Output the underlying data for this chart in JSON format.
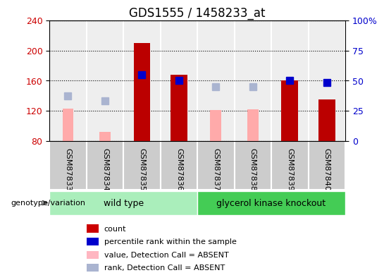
{
  "title": "GDS1555 / 1458233_at",
  "samples": [
    "GSM87833",
    "GSM87834",
    "GSM87835",
    "GSM87836",
    "GSM87837",
    "GSM87838",
    "GSM87839",
    "GSM87840"
  ],
  "red_bars": [
    null,
    null,
    210,
    168,
    null,
    null,
    160,
    135
  ],
  "pink_bars": [
    123,
    92,
    null,
    null,
    121,
    122,
    null,
    null
  ],
  "blue_squares": [
    null,
    null,
    168,
    160,
    null,
    null,
    160,
    157
  ],
  "lightblue_squares": [
    140,
    133,
    null,
    null,
    152,
    152,
    null,
    null
  ],
  "ylim_left": [
    80,
    240
  ],
  "yticks_left": [
    80,
    120,
    160,
    200,
    240
  ],
  "ylim_right_labels": [
    "0",
    "25",
    "50",
    "75",
    "100%"
  ],
  "bar_width": 0.45,
  "pink_bar_width": 0.3,
  "wild_type_label": "wild type",
  "knockout_label": "glycerol kinase knockout",
  "genotype_label": "genotype/variation",
  "legend_colors": [
    "#cc0000",
    "#0000cc",
    "#ffb6c1",
    "#aab4d0"
  ],
  "legend_labels": [
    "count",
    "percentile rank within the sample",
    "value, Detection Call = ABSENT",
    "rank, Detection Call = ABSENT"
  ],
  "title_fontsize": 12,
  "tick_fontsize": 9,
  "sample_fontsize": 8,
  "axis_color_left": "#cc0000",
  "axis_color_right": "#0000cc",
  "bg_color": "#ffffff",
  "plot_bg_color": "#eeeeee",
  "sample_bg_color": "#cccccc",
  "wild_type_color": "#aaeebb",
  "knockout_color": "#44cc55",
  "grid_color": "#000000",
  "divider_color": "#ffffff",
  "red_bar_color": "#bb0000",
  "pink_bar_color": "#ffaaaa",
  "blue_sq_color": "#0000cc",
  "lightblue_sq_color": "#aab4d0"
}
